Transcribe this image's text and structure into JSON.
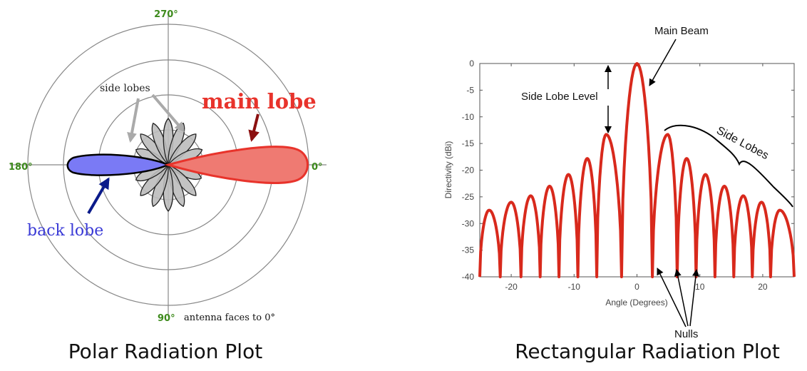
{
  "polar": {
    "angle_labels": {
      "a0": "0°",
      "a90": "90°",
      "a180": "180°",
      "a270": "270°"
    },
    "main_lobe_label": "main lobe",
    "back_lobe_label": "back lobe",
    "side_lobes_label": "side lobes",
    "note": "antenna faces to 0°",
    "caption": "Polar Radiation Plot",
    "colors": {
      "main": "#e8332b",
      "main_fill": "#ef7a72",
      "back": "#3a3ad6",
      "back_fill": "#7a7af5",
      "side_fill": "#bdbdbd",
      "angle_label": "#3d8a1c",
      "arrow_main": "#8b1010",
      "arrow_back": "#0a1a8a",
      "arrow_side": "#aaaaaa"
    }
  },
  "rect": {
    "caption": "Rectangular Radiation Plot",
    "annotations": {
      "main_beam": "Main Beam",
      "side_lobe_level": "Side Lobe Level",
      "side_lobes": "Side Lobes",
      "nulls": "Nulls"
    },
    "color": "#d8291c"
  },
  "chart_data": {
    "type": "line",
    "xlabel": "Angle (Degrees)",
    "ylabel": "Directivity (dBi)",
    "xlim": [
      -25,
      25
    ],
    "ylim": [
      -40,
      0
    ],
    "x_ticks": [
      -20,
      -10,
      0,
      10,
      20
    ],
    "y_ticks": [
      0,
      -5,
      -10,
      -15,
      -20,
      -25,
      -30,
      -35,
      -40
    ],
    "lobe_peaks_x": [
      -23.5,
      -20.0,
      -16.9,
      -13.9,
      -10.9,
      -7.9,
      -4.9,
      0,
      4.9,
      7.9,
      10.9,
      13.9,
      16.9,
      19.8,
      22.7
    ],
    "lobe_peaks_y": [
      -27.5,
      -26.0,
      -24.8,
      -23.0,
      -20.8,
      -17.8,
      -13.3,
      0,
      -13.3,
      -17.8,
      -20.8,
      -23.0,
      -24.8,
      -26.0,
      -27.5
    ]
  }
}
